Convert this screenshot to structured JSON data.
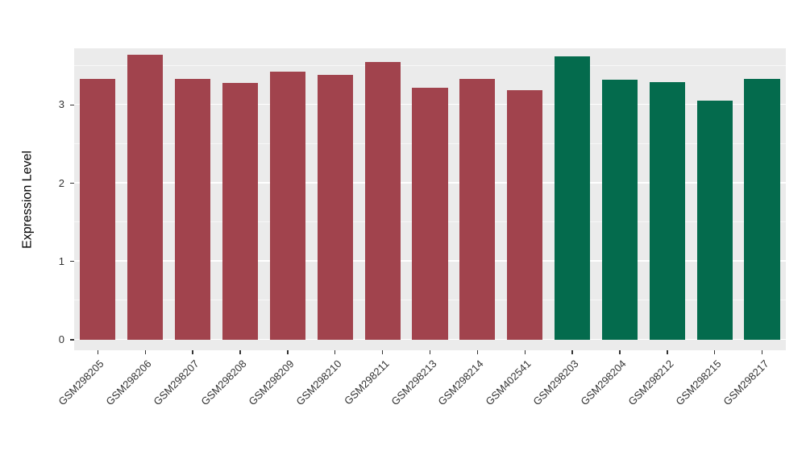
{
  "chart_data": {
    "type": "bar",
    "title": "",
    "xlabel": "",
    "ylabel": "Expression Level",
    "ylim": [
      0,
      3.75
    ],
    "y_ticks": [
      0,
      1,
      2,
      3
    ],
    "grid": true,
    "legend": "none",
    "categories": [
      "GSM298205",
      "GSM298206",
      "GSM298207",
      "GSM298208",
      "GSM298209",
      "GSM298210",
      "GSM298211",
      "GSM298213",
      "GSM298214",
      "GSM402541",
      "GSM298203",
      "GSM298204",
      "GSM298212",
      "GSM298215",
      "GSM298217"
    ],
    "values": [
      3.33,
      3.64,
      3.33,
      3.28,
      3.43,
      3.38,
      3.55,
      3.22,
      3.33,
      3.19,
      3.62,
      3.32,
      3.29,
      3.06,
      3.33
    ],
    "bar_colors": [
      "#A1434D",
      "#A1434D",
      "#A1434D",
      "#A1434D",
      "#A1434D",
      "#A1434D",
      "#A1434D",
      "#A1434D",
      "#A1434D",
      "#A1434D",
      "#046B4D",
      "#046B4D",
      "#046B4D",
      "#046B4D",
      "#046B4D"
    ],
    "panel_background": "#EBEBEB",
    "grid_color": "#FFFFFF",
    "text_color": "#333333"
  }
}
